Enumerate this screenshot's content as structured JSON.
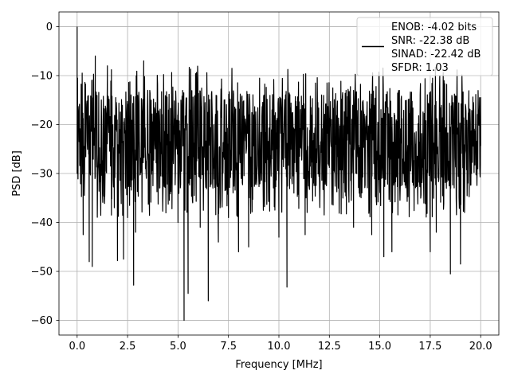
{
  "chart_data": {
    "type": "line",
    "xlabel": "Frequency [MHz]",
    "ylabel": "PSD [dB]",
    "xlim": [
      -0.9,
      20.9
    ],
    "ylim": [
      -63,
      3
    ],
    "x_ticks": [
      0.0,
      2.5,
      5.0,
      7.5,
      10.0,
      12.5,
      15.0,
      17.5,
      20.0
    ],
    "x_tick_labels": [
      "0.0",
      "2.5",
      "5.0",
      "7.5",
      "10.0",
      "12.5",
      "15.0",
      "17.5",
      "20.0"
    ],
    "y_ticks": [
      0,
      -10,
      -20,
      -30,
      -40,
      -50,
      -60
    ],
    "y_tick_labels": [
      "0",
      "−10",
      "−20",
      "−30",
      "−40",
      "−50",
      "−60"
    ],
    "grid": true,
    "legend_position": "top-right",
    "line_color": "#000000",
    "series": [
      {
        "legend_lines": [
          "ENOB: -4.02 bits",
          "SNR: -22.38 dB",
          "SINAD: -22.42 dB",
          "SFDR: 1.03"
        ],
        "x_range": [
          0.0,
          20.0
        ],
        "band": {
          "upper": -13,
          "lower": -33,
          "median": -22
        },
        "points": [
          {
            "x": 0.0,
            "y": 0.0
          },
          {
            "x": 0.02,
            "y": -10.5
          },
          {
            "x": 0.05,
            "y": -18.5
          },
          {
            "x": 0.1,
            "y": -23.5
          },
          {
            "x": 0.18,
            "y": -26.5
          },
          {
            "x": 0.25,
            "y": -9.5
          },
          {
            "x": 0.3,
            "y": -42.5
          },
          {
            "x": 0.6,
            "y": -48.0
          },
          {
            "x": 0.75,
            "y": -49.0
          },
          {
            "x": 0.9,
            "y": -6.0
          },
          {
            "x": 1.5,
            "y": -8.0
          },
          {
            "x": 1.7,
            "y": -38.5
          },
          {
            "x": 2.0,
            "y": -47.8
          },
          {
            "x": 2.3,
            "y": -47.5
          },
          {
            "x": 2.5,
            "y": -39.0
          },
          {
            "x": 2.8,
            "y": -52.8
          },
          {
            "x": 2.9,
            "y": -42.0
          },
          {
            "x": 3.3,
            "y": -7.0
          },
          {
            "x": 5.0,
            "y": -40.0
          },
          {
            "x": 5.3,
            "y": -60.0
          },
          {
            "x": 5.5,
            "y": -54.5
          },
          {
            "x": 6.1,
            "y": -41.0
          },
          {
            "x": 6.5,
            "y": -56.0
          },
          {
            "x": 7.0,
            "y": -44.0
          },
          {
            "x": 7.5,
            "y": -39.0
          },
          {
            "x": 8.0,
            "y": -46.0
          },
          {
            "x": 8.5,
            "y": -45.0
          },
          {
            "x": 10.0,
            "y": -43.0
          },
          {
            "x": 10.4,
            "y": -53.2
          },
          {
            "x": 11.3,
            "y": -42.5
          },
          {
            "x": 13.7,
            "y": -41.0
          },
          {
            "x": 14.6,
            "y": -42.5
          },
          {
            "x": 15.2,
            "y": -47.0
          },
          {
            "x": 15.6,
            "y": -46.0
          },
          {
            "x": 17.5,
            "y": -46.0
          },
          {
            "x": 17.8,
            "y": -42.0
          },
          {
            "x": 18.5,
            "y": -50.5
          },
          {
            "x": 19.0,
            "y": -48.5
          },
          {
            "x": 20.0,
            "y": -14.5
          }
        ]
      }
    ]
  }
}
